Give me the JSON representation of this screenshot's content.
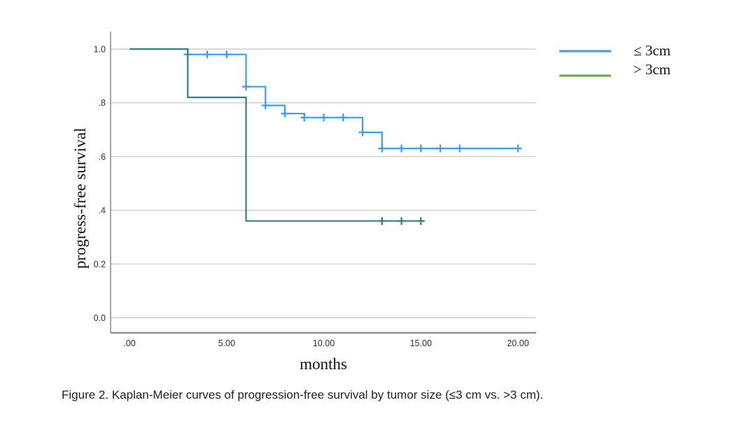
{
  "figure": {
    "caption": "Figure 2. Kaplan-Meier curves of progression-free survival by tumor size (≤3 cm vs. >3 cm)."
  },
  "chart_data": {
    "type": "line",
    "subtype": "kaplan-meier-step-curves",
    "title": "",
    "xlabel": "months",
    "ylabel": "progress-free survival",
    "xlim": [
      -1,
      21
    ],
    "ylim": [
      -0.05,
      1.07
    ],
    "grid": "horizontal-only",
    "x_ticks": [
      {
        "value": 0,
        "label": ".00"
      },
      {
        "value": 5,
        "label": "5.00"
      },
      {
        "value": 10,
        "label": "10.00"
      },
      {
        "value": 15,
        "label": "15.00"
      },
      {
        "value": 20,
        "label": "20.00"
      }
    ],
    "y_ticks": [
      {
        "value": 1.0,
        "label": "1.0"
      },
      {
        "value": 0.8,
        "label": ".8"
      },
      {
        "value": 0.6,
        "label": ".6"
      },
      {
        "value": 0.4,
        "label": ".4"
      },
      {
        "value": 0.2,
        "label": "0.2"
      },
      {
        "value": 0.0,
        "label": "0.0"
      }
    ],
    "legend": {
      "position": "outside-top-right",
      "entries": [
        {
          "label": "≤ 3cm",
          "swatch_color": "#5b9bd5"
        },
        {
          "label": "> 3cm",
          "swatch_color": "#6fad47"
        }
      ]
    },
    "series": [
      {
        "name": "≤ 3cm",
        "color": "#3f9de8",
        "steps": [
          [
            0,
            1.0
          ],
          [
            3,
            0.98
          ],
          [
            6,
            0.86
          ],
          [
            7,
            0.79
          ],
          [
            8,
            0.76
          ],
          [
            9,
            0.745
          ],
          [
            12,
            0.69
          ],
          [
            13,
            0.63
          ]
        ],
        "end_x": 20,
        "censored": [
          [
            3,
            0.98
          ],
          [
            4,
            0.98
          ],
          [
            5,
            0.98
          ],
          [
            6,
            0.86
          ],
          [
            7,
            0.79
          ],
          [
            8,
            0.76
          ],
          [
            9,
            0.745
          ],
          [
            10,
            0.745
          ],
          [
            11,
            0.745
          ],
          [
            12,
            0.69
          ],
          [
            13,
            0.63
          ],
          [
            14,
            0.63
          ],
          [
            15,
            0.63
          ],
          [
            16,
            0.63
          ],
          [
            17,
            0.63
          ],
          [
            20,
            0.63
          ]
        ]
      },
      {
        "name": "> 3cm",
        "color": "#3a7f7d",
        "steps": [
          [
            0,
            1.0
          ],
          [
            3,
            0.82
          ],
          [
            6,
            0.36
          ]
        ],
        "end_x": 15,
        "censored": [
          [
            13,
            0.36
          ],
          [
            14,
            0.36
          ],
          [
            15,
            0.36
          ]
        ]
      }
    ]
  }
}
